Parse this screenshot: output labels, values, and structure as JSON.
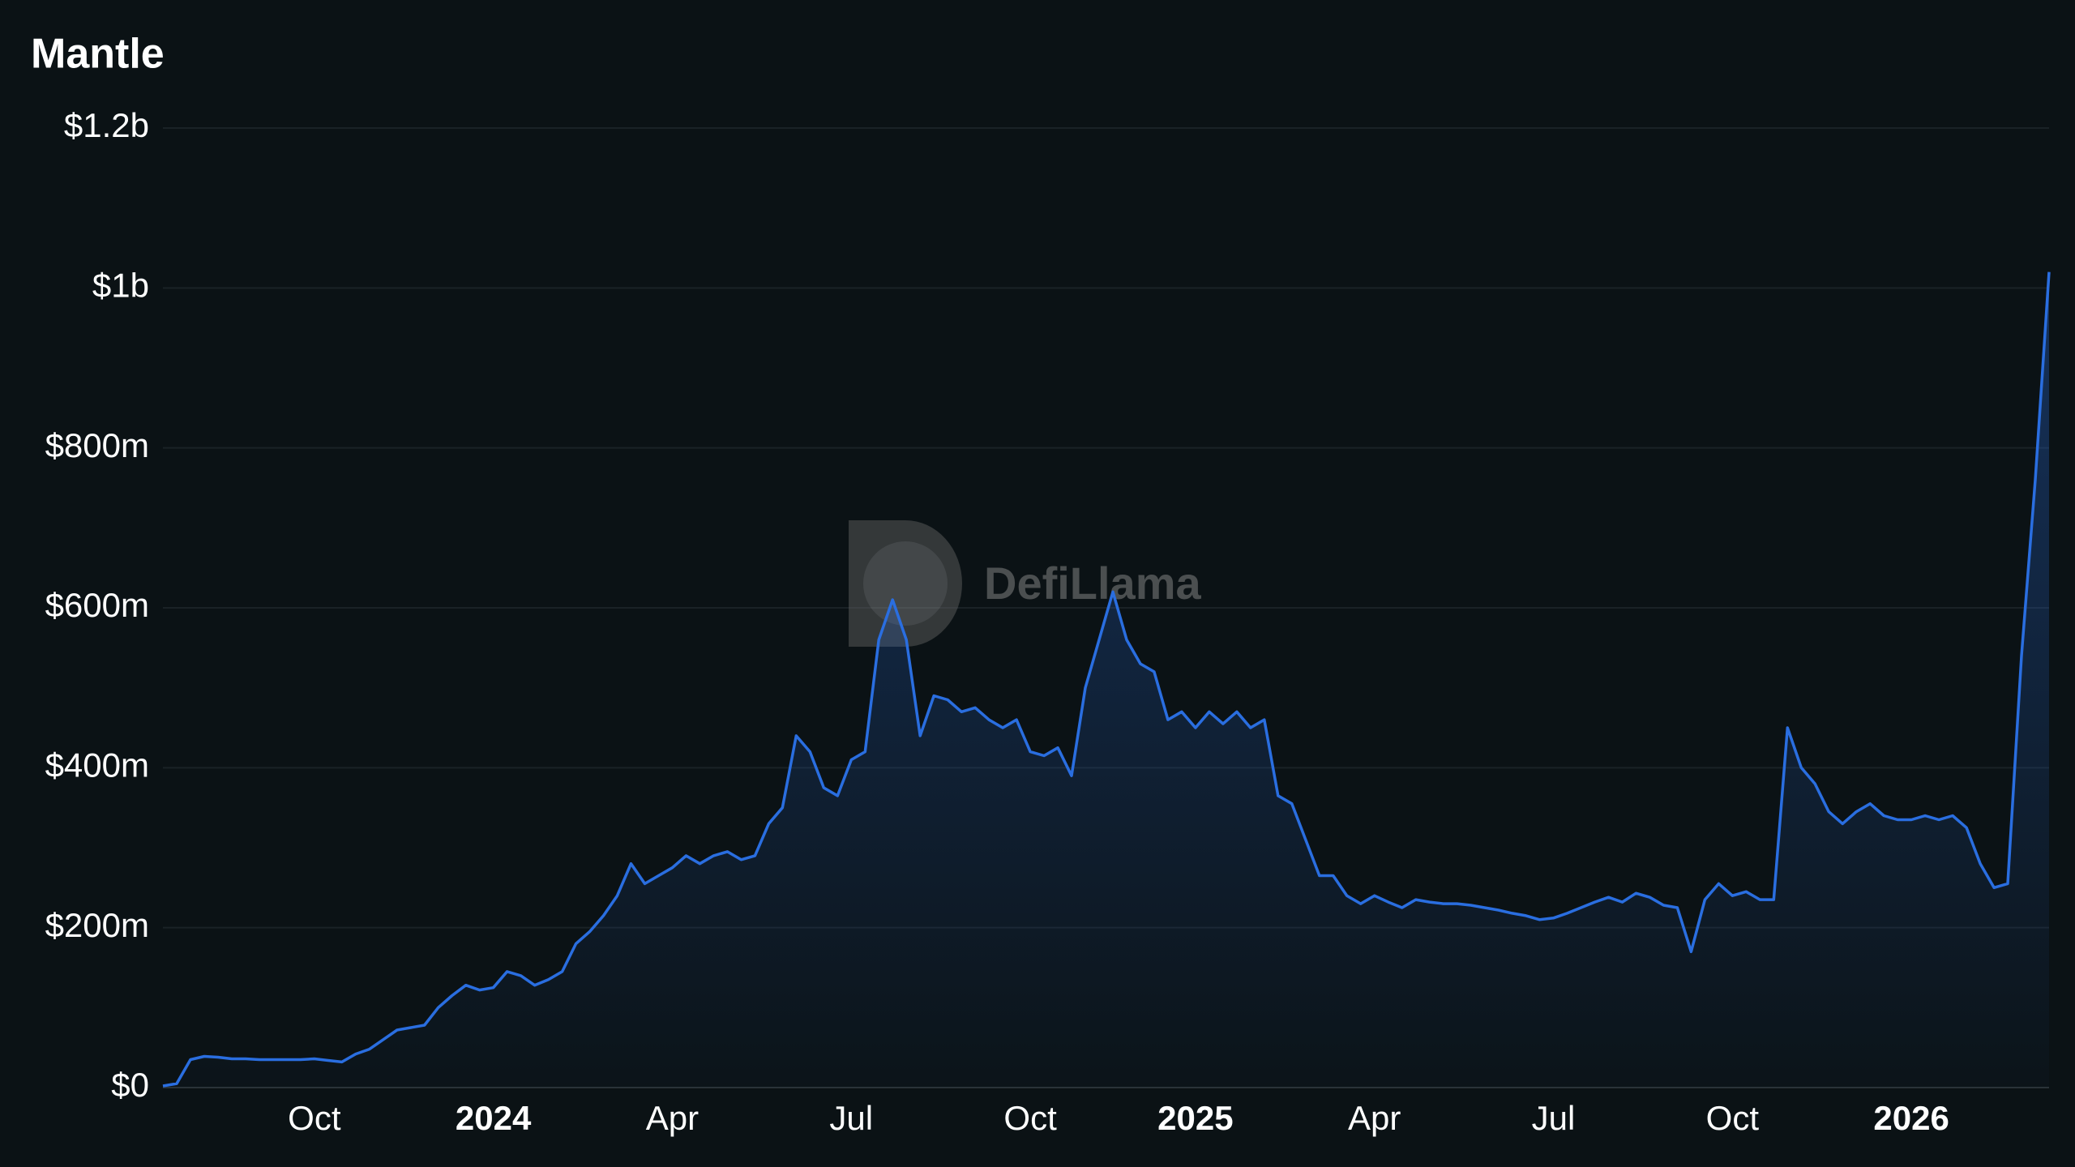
{
  "chart_data": {
    "type": "area",
    "title": "Mantle",
    "watermark": "DefiLlama",
    "color": "#2a6ee0",
    "grid": true,
    "categories": [
      null,
      null,
      null,
      null,
      null,
      null,
      null,
      null,
      null,
      null,
      null,
      "Oct",
      null,
      null,
      null,
      null,
      null,
      null,
      null,
      null,
      null,
      null,
      null,
      null,
      "2024",
      null,
      null,
      null,
      null,
      null,
      null,
      null,
      null,
      null,
      null,
      null,
      null,
      "Apr",
      null,
      null,
      null,
      null,
      null,
      null,
      null,
      null,
      null,
      null,
      null,
      null,
      "Jul",
      null,
      null,
      null,
      null,
      null,
      null,
      null,
      null,
      null,
      null,
      null,
      null,
      "Oct",
      null,
      null,
      null,
      null,
      null,
      null,
      null,
      null,
      null,
      null,
      null,
      "2025",
      null,
      null,
      null,
      null,
      null,
      null,
      null,
      null,
      null,
      null,
      null,
      null,
      "Apr",
      null,
      null,
      null,
      null,
      null,
      null,
      null,
      null,
      null,
      null,
      null,
      null,
      "Jul",
      null,
      null,
      null,
      null,
      null,
      null,
      null,
      null,
      null,
      null,
      null,
      null,
      "Oct",
      null,
      null,
      null,
      null,
      null,
      null,
      null,
      null,
      null,
      null,
      null,
      null,
      "2026",
      null,
      null,
      null,
      null,
      null,
      null,
      null,
      null,
      null,
      null
    ],
    "values": [
      2000000.0,
      5000000.0,
      35000000.0,
      39000000.0,
      38000000.0,
      36000000.0,
      36000000.0,
      35000000.0,
      35000000.0,
      35000000.0,
      35000000.0,
      36000000.0,
      34000000.0,
      32000000.0,
      42000000.0,
      48000000.0,
      60000000.0,
      72000000.0,
      75000000.0,
      78000000.0,
      100000000.0,
      115000000.0,
      128000000.0,
      122000000.0,
      125000000.0,
      145000000.0,
      140000000.0,
      128000000.0,
      135000000.0,
      145000000.0,
      180000000.0,
      195000000.0,
      215000000.0,
      240000000.0,
      280000000.0,
      255000000.0,
      265000000.0,
      275000000.0,
      290000000.0,
      280000000.0,
      290000000.0,
      295000000.0,
      285000000.0,
      290000000.0,
      330000000.0,
      350000000.0,
      440000000.0,
      420000000.0,
      375000000.0,
      365000000.0,
      410000000.0,
      420000000.0,
      560000000.0,
      610000000.0,
      560000000.0,
      440000000.0,
      490000000.0,
      485000000.0,
      470000000.0,
      475000000.0,
      460000000.0,
      450000000.0,
      460000000.0,
      420000000.0,
      415000000.0,
      425000000.0,
      390000000.0,
      500000000.0,
      560000000.0,
      620000000.0,
      560000000.0,
      530000000.0,
      520000000.0,
      460000000.0,
      470000000.0,
      450000000.0,
      470000000.0,
      455000000.0,
      470000000.0,
      450000000.0,
      460000000.0,
      365000000.0,
      355000000.0,
      310000000.0,
      265000000.0,
      265000000.0,
      240000000.0,
      230000000.0,
      240000000.0,
      232000000.0,
      225000000.0,
      235000000.0,
      232000000.0,
      230000000.0,
      230000000.0,
      228000000.0,
      225000000.0,
      222000000.0,
      218000000.0,
      215000000.0,
      210000000.0,
      212000000.0,
      218000000.0,
      225000000.0,
      232000000.0,
      238000000.0,
      232000000.0,
      243000000.0,
      238000000.0,
      228000000.0,
      225000000.0,
      170000000.0,
      235000000.0,
      255000000.0,
      240000000.0,
      245000000.0,
      235000000.0,
      235000000.0,
      450000000.0,
      400000000.0,
      380000000.0,
      345000000.0,
      330000000.0,
      345000000.0,
      355000000.0,
      340000000.0,
      335000000.0,
      335000000.0,
      340000000.0,
      335000000.0,
      340000000.0,
      325000000.0,
      280000000.0,
      250000000.0,
      255000000.0,
      540000000.0,
      760000000.0,
      1020000000.0
    ],
    "ylim": [
      0,
      1200000000
    ],
    "yticks": [
      {
        "value": 0,
        "label": "$0"
      },
      {
        "value": 200000000,
        "label": "$200m"
      },
      {
        "value": 400000000,
        "label": "$400m"
      },
      {
        "value": 600000000,
        "label": "$600m"
      },
      {
        "value": 800000000,
        "label": "$800m"
      },
      {
        "value": 1000000000,
        "label": "$1b"
      },
      {
        "value": 1200000000,
        "label": "$1.2b"
      }
    ]
  }
}
